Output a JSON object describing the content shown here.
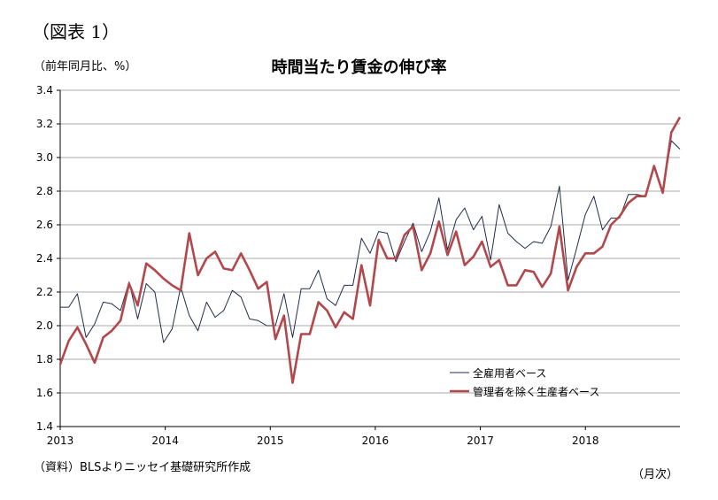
{
  "figure_label": "（図表 1）",
  "unit_label": "（前年同月比、%）",
  "source_note": "（資料）BLSよりニッセイ基礎研究所作成",
  "x_unit_label": "（月次）",
  "chart_data": {
    "type": "line",
    "title": "時間当たり賃金の伸び率",
    "ylabel": "（前年同月比、%）",
    "xlabel": "（月次）",
    "ylim": [
      1.4,
      3.4
    ],
    "y_ticks": [
      "1.4",
      "1.6",
      "1.8",
      "2.0",
      "2.2",
      "2.4",
      "2.6",
      "2.8",
      "3.0",
      "3.2",
      "3.4"
    ],
    "x_range": [
      2013.0,
      2018.9
    ],
    "x_ticks": [
      "2013",
      "2014",
      "2015",
      "2016",
      "2017",
      "2018"
    ],
    "grid": "horizontal",
    "legend_position": "bottom-right",
    "series": [
      {
        "name": "全雇用者ベース",
        "color": "#1f2d4d",
        "values": [
          2.11,
          2.11,
          2.19,
          1.93,
          2.01,
          2.14,
          2.13,
          2.09,
          2.26,
          2.04,
          2.25,
          2.2,
          1.9,
          1.98,
          2.23,
          2.06,
          1.97,
          2.14,
          2.05,
          2.09,
          2.21,
          2.17,
          2.04,
          2.03,
          2.0,
          2.0,
          2.19,
          1.93,
          2.22,
          2.22,
          2.33,
          2.16,
          2.12,
          2.24,
          2.24,
          2.52,
          2.43,
          2.56,
          2.55,
          2.38,
          2.5,
          2.61,
          2.44,
          2.56,
          2.76,
          2.45,
          2.63,
          2.7,
          2.57,
          2.65,
          2.39,
          2.72,
          2.55,
          2.5,
          2.46,
          2.5,
          2.49,
          2.59,
          2.83,
          2.27,
          2.46,
          2.66,
          2.77,
          2.57,
          2.64,
          2.64,
          2.78,
          2.78,
          2.77,
          2.94,
          2.8,
          3.1,
          3.05
        ]
      },
      {
        "name": "管理者を除く生産者ベース",
        "color": "#b2484b",
        "values": [
          1.77,
          1.91,
          1.99,
          1.89,
          1.78,
          1.93,
          1.97,
          2.03,
          2.25,
          2.12,
          2.37,
          2.33,
          2.28,
          2.24,
          2.21,
          2.55,
          2.3,
          2.4,
          2.44,
          2.34,
          2.33,
          2.43,
          2.33,
          2.22,
          2.26,
          1.92,
          2.06,
          1.66,
          1.95,
          1.95,
          2.14,
          2.09,
          1.99,
          2.08,
          2.04,
          2.36,
          2.12,
          2.51,
          2.4,
          2.4,
          2.54,
          2.59,
          2.33,
          2.43,
          2.62,
          2.42,
          2.56,
          2.36,
          2.41,
          2.5,
          2.35,
          2.39,
          2.24,
          2.24,
          2.33,
          2.32,
          2.23,
          2.31,
          2.59,
          2.21,
          2.35,
          2.43,
          2.43,
          2.47,
          2.6,
          2.65,
          2.73,
          2.77,
          2.77,
          2.95,
          2.79,
          3.15,
          3.24
        ]
      }
    ]
  }
}
